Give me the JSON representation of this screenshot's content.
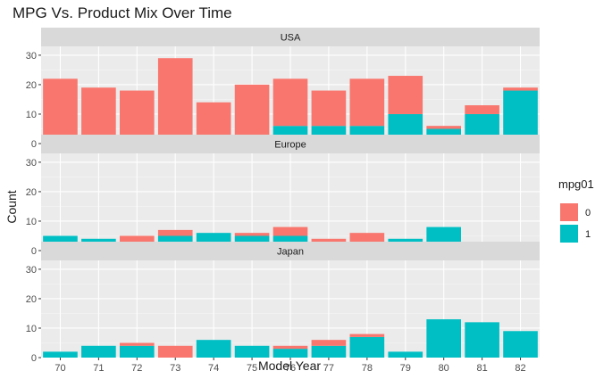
{
  "chart_data": {
    "type": "bar",
    "stacked": true,
    "title": "MPG Vs. Product Mix Over Time",
    "xlabel": "Model Year",
    "ylabel": "Count",
    "ylim": [
      0,
      33
    ],
    "yticks": [
      0,
      10,
      20,
      30
    ],
    "grid": true,
    "legend": {
      "title": "mpg01",
      "position": "right"
    },
    "categories": [
      "70",
      "71",
      "72",
      "73",
      "74",
      "75",
      "76",
      "77",
      "78",
      "79",
      "80",
      "81",
      "82"
    ],
    "series_meta": [
      {
        "name": "0",
        "color": "#F8766D"
      },
      {
        "name": "1",
        "color": "#00BFC4"
      }
    ],
    "facets": [
      {
        "name": "USA",
        "series": [
          {
            "name": "0",
            "values": [
              22,
              16,
              16,
              28,
              11,
              18,
              16,
              12,
              16,
              13,
              1,
              3,
              1
            ]
          },
          {
            "name": "1",
            "values": [
              0,
              3,
              2,
              1,
              3,
              2,
              6,
              6,
              6,
              10,
              5,
              10,
              18
            ]
          }
        ]
      },
      {
        "name": "Europe",
        "series": [
          {
            "name": "0",
            "values": [
              0,
              0,
              3,
              2,
              0,
              1,
              3,
              1,
              4,
              0,
              0,
              0,
              0
            ]
          },
          {
            "name": "1",
            "values": [
              5,
              4,
              2,
              5,
              6,
              5,
              5,
              3,
              2,
              4,
              8,
              3,
              2
            ]
          }
        ]
      },
      {
        "name": "Japan",
        "series": [
          {
            "name": "0",
            "values": [
              0,
              0,
              1,
              4,
              0,
              0,
              1,
              2,
              1,
              0,
              0,
              0,
              0
            ]
          },
          {
            "name": "1",
            "values": [
              2,
              4,
              4,
              0,
              6,
              4,
              3,
              4,
              7,
              2,
              13,
              12,
              9
            ]
          }
        ]
      }
    ]
  }
}
